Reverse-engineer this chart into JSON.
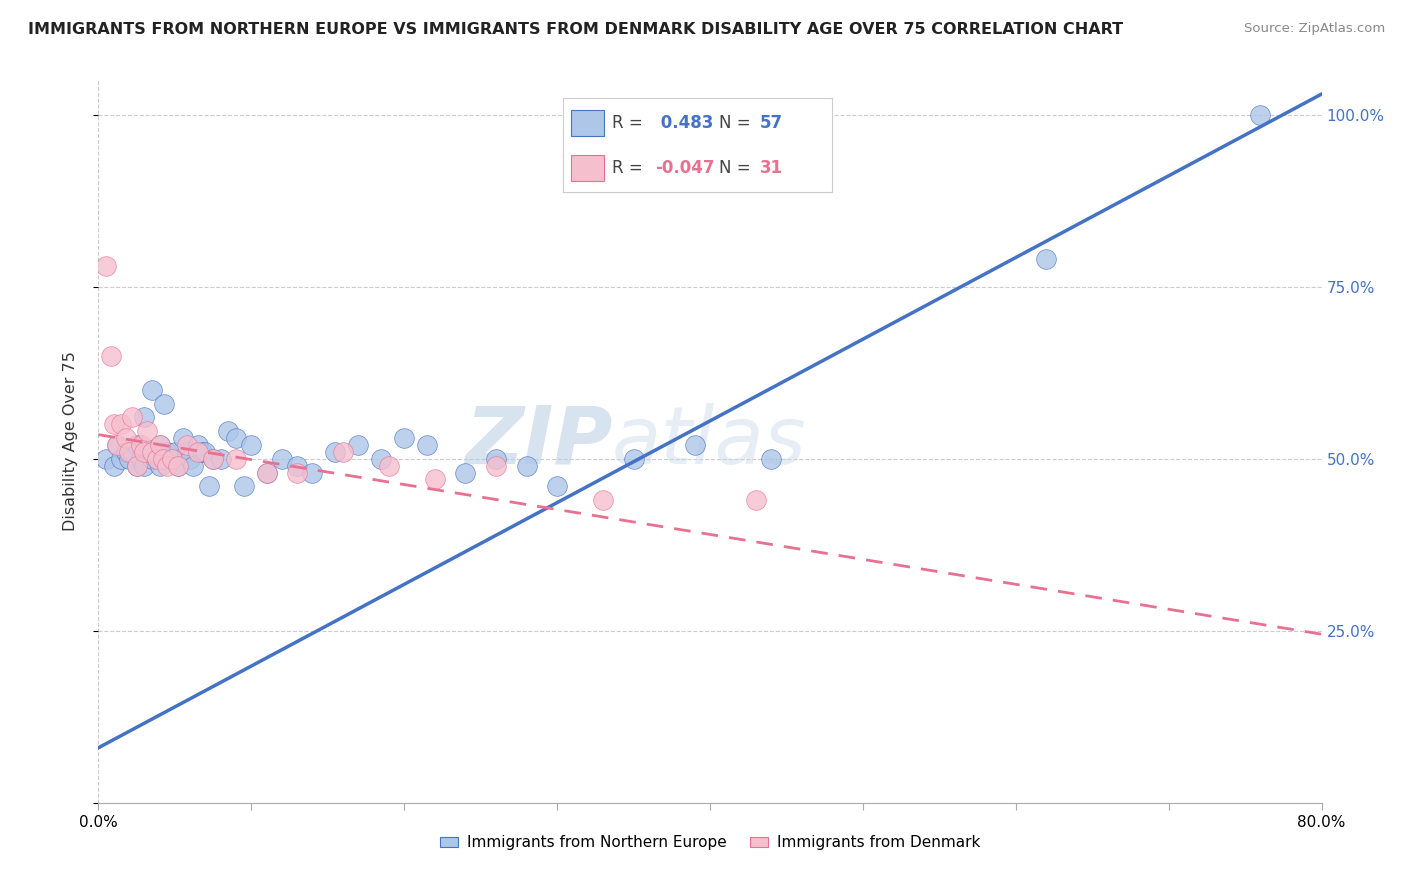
{
  "title": "IMMIGRANTS FROM NORTHERN EUROPE VS IMMIGRANTS FROM DENMARK DISABILITY AGE OVER 75 CORRELATION CHART",
  "source": "Source: ZipAtlas.com",
  "ylabel": "Disability Age Over 75",
  "legend_label_blue": "Immigrants from Northern Europe",
  "legend_label_pink": "Immigrants from Denmark",
  "R_blue": 0.483,
  "N_blue": 57,
  "R_pink": -0.047,
  "N_pink": 31,
  "blue_color": "#aec6e8",
  "pink_color": "#f5bfce",
  "line_blue": "#4472c4",
  "line_pink": "#e87090",
  "watermark_zip": "ZIP",
  "watermark_atlas": "atlas",
  "xmin": 0.0,
  "xmax": 0.8,
  "ymin": 0.0,
  "ymax": 1.05,
  "blue_x": [
    0.005,
    0.01,
    0.012,
    0.015,
    0.018,
    0.02,
    0.022,
    0.025,
    0.025,
    0.028,
    0.03,
    0.03,
    0.032,
    0.033,
    0.035,
    0.035,
    0.038,
    0.04,
    0.04,
    0.042,
    0.043,
    0.045,
    0.048,
    0.05,
    0.052,
    0.055,
    0.058,
    0.06,
    0.062,
    0.065,
    0.068,
    0.07,
    0.072,
    0.075,
    0.08,
    0.085,
    0.09,
    0.095,
    0.1,
    0.11,
    0.12,
    0.13,
    0.14,
    0.155,
    0.17,
    0.185,
    0.2,
    0.215,
    0.24,
    0.26,
    0.28,
    0.3,
    0.35,
    0.39,
    0.44,
    0.62,
    0.76
  ],
  "blue_y": [
    0.5,
    0.49,
    0.52,
    0.5,
    0.51,
    0.5,
    0.51,
    0.49,
    0.52,
    0.5,
    0.49,
    0.56,
    0.51,
    0.51,
    0.5,
    0.6,
    0.5,
    0.49,
    0.52,
    0.5,
    0.58,
    0.51,
    0.5,
    0.51,
    0.49,
    0.53,
    0.51,
    0.5,
    0.49,
    0.52,
    0.51,
    0.51,
    0.46,
    0.5,
    0.5,
    0.54,
    0.53,
    0.46,
    0.52,
    0.48,
    0.5,
    0.49,
    0.48,
    0.51,
    0.52,
    0.5,
    0.53,
    0.52,
    0.48,
    0.5,
    0.49,
    0.46,
    0.5,
    0.52,
    0.5,
    0.79,
    1.0
  ],
  "pink_x": [
    0.005,
    0.008,
    0.01,
    0.012,
    0.015,
    0.018,
    0.02,
    0.022,
    0.025,
    0.028,
    0.03,
    0.032,
    0.035,
    0.038,
    0.04,
    0.042,
    0.045,
    0.048,
    0.052,
    0.058,
    0.065,
    0.075,
    0.09,
    0.11,
    0.13,
    0.16,
    0.19,
    0.22,
    0.26,
    0.33,
    0.43
  ],
  "pink_y": [
    0.78,
    0.65,
    0.55,
    0.52,
    0.55,
    0.53,
    0.51,
    0.56,
    0.49,
    0.52,
    0.51,
    0.54,
    0.51,
    0.5,
    0.52,
    0.5,
    0.49,
    0.5,
    0.49,
    0.52,
    0.51,
    0.5,
    0.5,
    0.48,
    0.48,
    0.51,
    0.49,
    0.47,
    0.49,
    0.44,
    0.44
  ],
  "blue_line_x0": 0.0,
  "blue_line_y0": 0.08,
  "blue_line_x1": 0.8,
  "blue_line_y1": 1.03,
  "pink_line_x0": 0.0,
  "pink_line_y0": 0.535,
  "pink_line_x1": 0.8,
  "pink_line_y1": 0.245
}
